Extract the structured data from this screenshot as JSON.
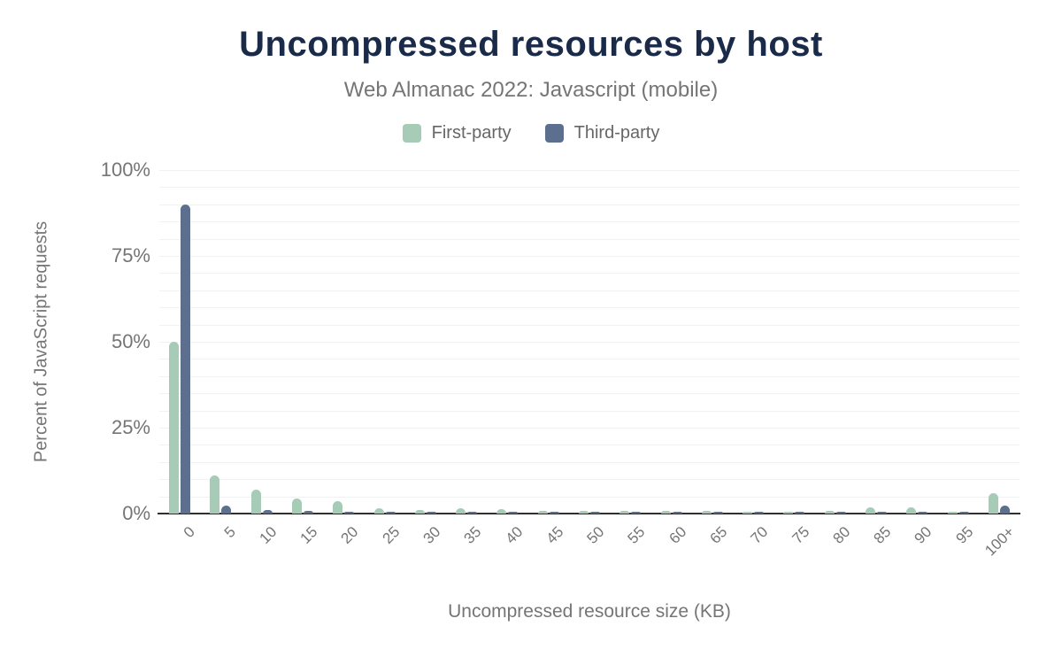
{
  "chart": {
    "title": "Uncompressed resources by host",
    "subtitle": "Web Almanac 2022: Javascript (mobile)"
  },
  "legend": {
    "items": [
      {
        "label": "First-party",
        "color": "#a6cbb6"
      },
      {
        "label": "Third-party",
        "color": "#5d6f8e"
      }
    ]
  },
  "chart_data": {
    "type": "bar",
    "title": "Uncompressed resources by host",
    "subtitle": "Web Almanac 2022: Javascript (mobile)",
    "categories": [
      "0",
      "5",
      "10",
      "15",
      "20",
      "25",
      "30",
      "35",
      "40",
      "45",
      "50",
      "55",
      "60",
      "65",
      "70",
      "75",
      "80",
      "85",
      "90",
      "95",
      "100+"
    ],
    "series": [
      {
        "name": "First-party",
        "color": "#a6cbb6",
        "values": [
          50,
          11,
          7,
          4.5,
          3.5,
          1.6,
          1.1,
          1.5,
          1.2,
          0.9,
          0.8,
          0.9,
          0.8,
          0.7,
          0.5,
          0.5,
          0.9,
          1.9,
          1.9,
          0.5,
          5.8
        ]
      },
      {
        "name": "Third-party",
        "color": "#5d6f8e",
        "values": [
          90,
          2.2,
          1.0,
          0.8,
          0.6,
          0.35,
          0.3,
          0.3,
          0.3,
          0.25,
          0.25,
          0.25,
          0.25,
          0.2,
          0.2,
          0.3,
          0.3,
          0.3,
          0.25,
          0.3,
          2.2
        ]
      }
    ],
    "xlabel": "Uncompressed resource size (KB)",
    "ylabel": "Percent of JavaScript requests",
    "ylim": [
      0,
      100
    ],
    "y_ticks": [
      "0%",
      "25%",
      "50%",
      "75%",
      "100%"
    ],
    "y_tick_values": [
      0,
      25,
      50,
      75,
      100
    ],
    "gridline_step_pct": 5,
    "grid": true,
    "legend_position": "top"
  },
  "colors": {
    "title_text": "#1a2b49",
    "subtitle_text": "#757575",
    "axis_text": "#757575",
    "legend_text": "#666666",
    "gridline": "#f1f1f1",
    "axis_line": "#2f2f2f",
    "background": "#ffffff"
  }
}
